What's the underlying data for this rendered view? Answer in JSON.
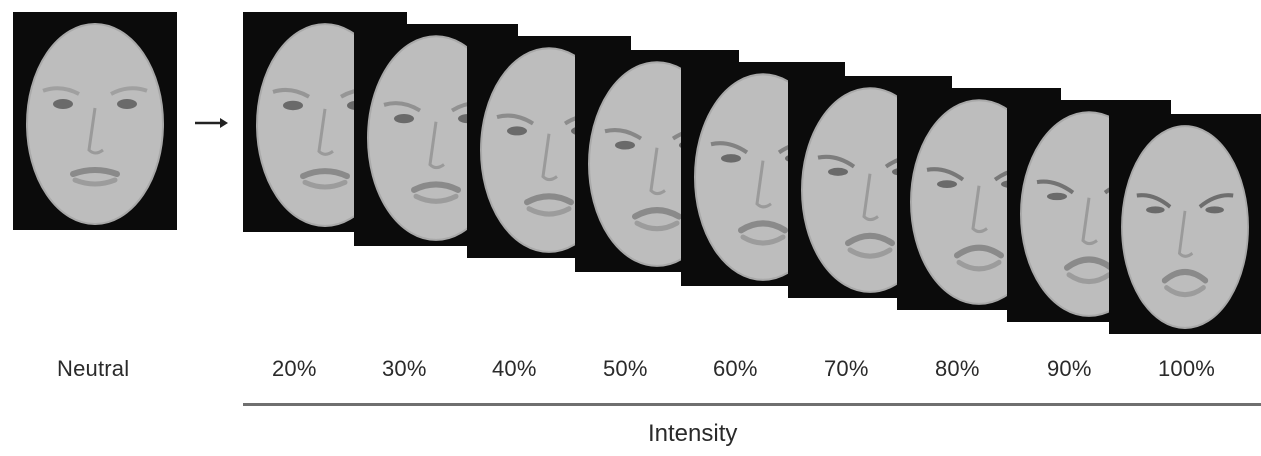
{
  "neutral_label": "Neutral",
  "intensity_labels": [
    "20%",
    "30%",
    "40%",
    "50%",
    "60%",
    "70%",
    "80%",
    "90%",
    "100%"
  ],
  "axis_title": "Intensity",
  "colors": {
    "frame": "#0b0b0b",
    "skin": "#bdbdbd",
    "text": "#2a2a2a",
    "axis": "#6f6f6f"
  }
}
